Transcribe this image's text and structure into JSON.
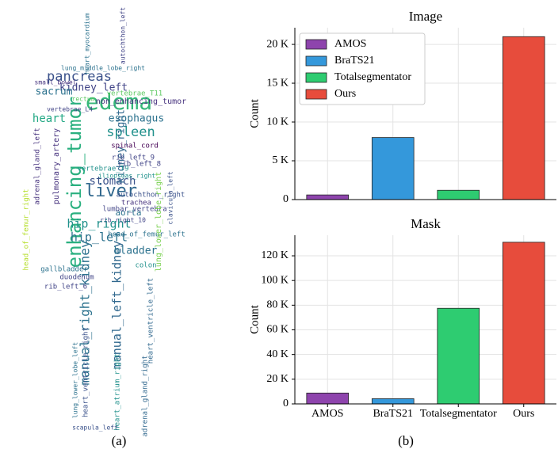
{
  "word_cloud": {
    "caption": "(a)",
    "words": [
      "edema",
      "enhancing_tumor",
      "liver",
      "pancreas",
      "kidney_left",
      "spleen",
      "esophagus",
      "heart",
      "sacrum",
      "non_enhancing_tumor",
      "stomach",
      "hip_right",
      "hip_left",
      "aorta",
      "manual_right_kidney",
      "manual_left_kidney",
      "bladder",
      "kidney_right",
      "spinal_cord",
      "pulmonary_artery",
      "lumbar_vertebra",
      "head_of_femur_left",
      "duodenum",
      "gallbladder",
      "rib_left_6",
      "colon",
      "autochthon_right",
      "trachea",
      "vertebrae_T9",
      "rib_left_9",
      "rib_left_8",
      "adrenal_gland_left",
      "heart_myocardium",
      "vertebrae_T11",
      "lung_lower_lobe_right",
      "head_of_femur_right",
      "heart_ventricle_right",
      "adrenal_gland_right",
      "heart_atrium_right",
      "autochthon_left",
      "small_bowel",
      "rectum",
      "vertebrae_L4",
      "lung_lower_lobe_left",
      "scapula_left",
      "heart_ventricle_left",
      "iliopsoas_right",
      "rib_right_10",
      "clavicula_left",
      "lung_middle_lobe_right"
    ]
  },
  "charts_caption": "(b)",
  "chart_data": [
    {
      "type": "bar",
      "title": "Image",
      "y_label": "Count",
      "categories": [
        "AMOS",
        "BraTS21",
        "Totalsegmentator",
        "Ours"
      ],
      "values": [
        600,
        8000,
        1200,
        21000
      ],
      "colors": [
        "#8e44ad",
        "#3498db",
        "#2ecc71",
        "#e74c3c"
      ],
      "ylim": [
        0,
        22150
      ],
      "yticks": [
        0,
        {
          "value": 5000,
          "label": "5 K"
        },
        {
          "value": 10000,
          "label": "10 K"
        },
        {
          "value": 15000,
          "label": "15 K"
        },
        {
          "value": 20000,
          "label": "20 K"
        }
      ],
      "grid": true,
      "legend": "upper left",
      "show_xtick_labels": false
    },
    {
      "type": "bar",
      "title": "Mask",
      "y_label": "Count",
      "categories": [
        "AMOS",
        "BraTS21",
        "Totalsegmentator",
        "Ours"
      ],
      "values": [
        8800,
        4200,
        77500,
        131000
      ],
      "colors": [
        "#8e44ad",
        "#3498db",
        "#2ecc71",
        "#e74c3c"
      ],
      "ylim": [
        0,
        136700
      ],
      "yticks": [
        0,
        {
          "value": 20000,
          "label": "20 K"
        },
        {
          "value": 40000,
          "label": "40 K"
        },
        {
          "value": 60000,
          "label": "60 K"
        },
        {
          "value": 80000,
          "label": "80 K"
        },
        {
          "value": 100000,
          "label": "100 K"
        },
        {
          "value": 120000,
          "label": "120 K"
        }
      ],
      "grid": true,
      "show_xtick_labels": true
    }
  ]
}
